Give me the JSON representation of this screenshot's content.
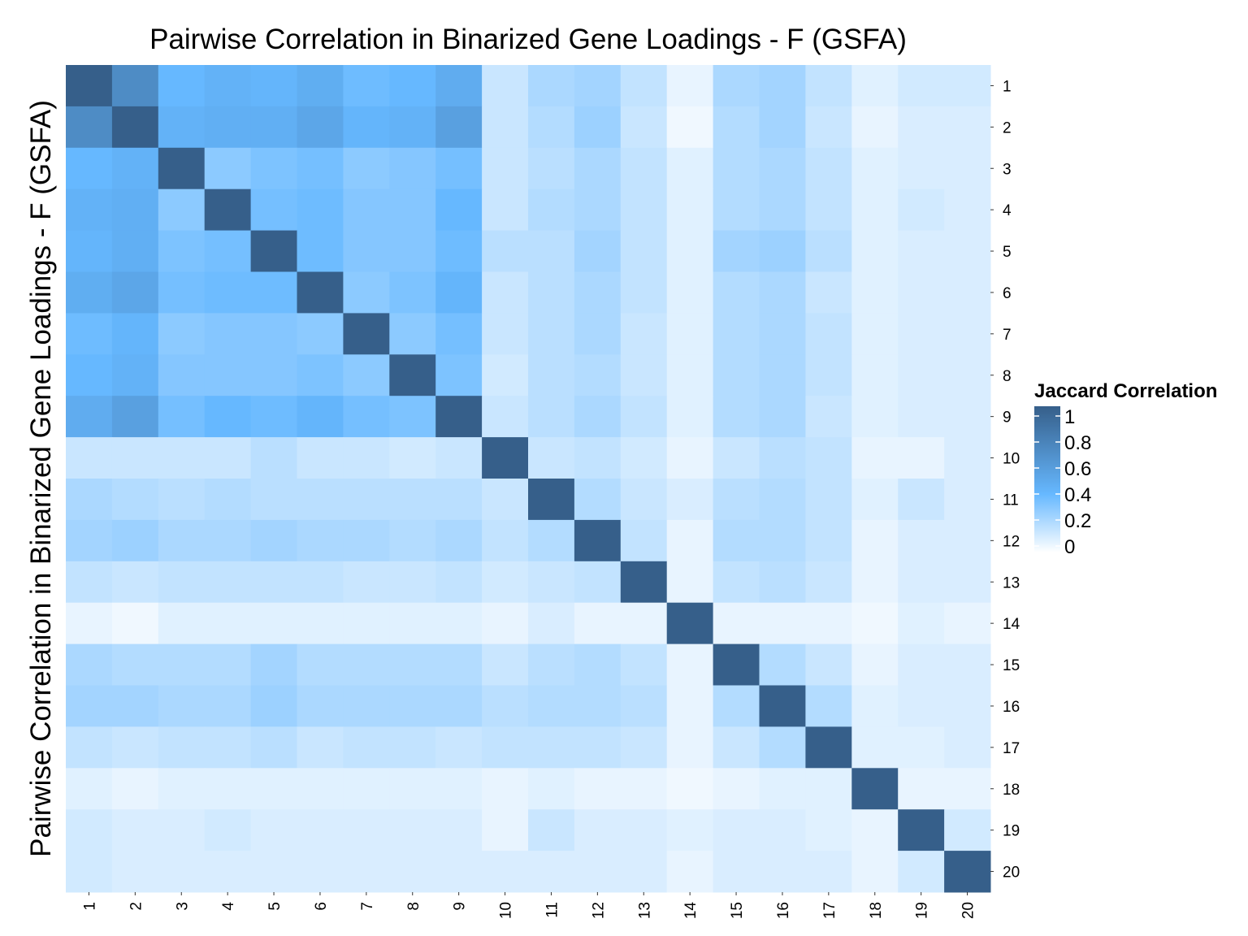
{
  "chart_data": {
    "type": "heatmap",
    "title": "Pairwise Correlation in Binarized Gene Loadings - F (GSFA)",
    "xlabel": "",
    "ylabel": "Pairwise Correlation in Binarized Gene Loadings - F (GSFA)",
    "x_categories": [
      "1",
      "2",
      "3",
      "4",
      "5",
      "6",
      "7",
      "8",
      "9",
      "10",
      "11",
      "12",
      "13",
      "14",
      "15",
      "16",
      "17",
      "18",
      "19",
      "20"
    ],
    "y_categories": [
      "1",
      "2",
      "3",
      "4",
      "5",
      "6",
      "7",
      "8",
      "9",
      "10",
      "11",
      "12",
      "13",
      "14",
      "15",
      "16",
      "17",
      "18",
      "19",
      "20"
    ],
    "values": [
      [
        1.0,
        0.7,
        0.4,
        0.44,
        0.42,
        0.47,
        0.38,
        0.4,
        0.48,
        0.14,
        0.22,
        0.24,
        0.16,
        0.06,
        0.22,
        0.24,
        0.16,
        0.08,
        0.12,
        0.12
      ],
      [
        0.7,
        1.0,
        0.44,
        0.46,
        0.46,
        0.52,
        0.42,
        0.44,
        0.56,
        0.14,
        0.2,
        0.26,
        0.14,
        0.04,
        0.2,
        0.24,
        0.14,
        0.06,
        0.1,
        0.1
      ],
      [
        0.4,
        0.44,
        1.0,
        0.3,
        0.34,
        0.36,
        0.3,
        0.32,
        0.36,
        0.14,
        0.18,
        0.22,
        0.16,
        0.08,
        0.2,
        0.22,
        0.16,
        0.08,
        0.1,
        0.1
      ],
      [
        0.44,
        0.46,
        0.3,
        1.0,
        0.36,
        0.38,
        0.32,
        0.32,
        0.4,
        0.14,
        0.2,
        0.22,
        0.16,
        0.08,
        0.2,
        0.22,
        0.16,
        0.08,
        0.12,
        0.1
      ],
      [
        0.42,
        0.46,
        0.34,
        0.36,
        1.0,
        0.38,
        0.32,
        0.32,
        0.38,
        0.18,
        0.18,
        0.24,
        0.16,
        0.08,
        0.24,
        0.26,
        0.18,
        0.08,
        0.1,
        0.1
      ],
      [
        0.47,
        0.52,
        0.36,
        0.38,
        0.38,
        1.0,
        0.3,
        0.34,
        0.42,
        0.14,
        0.18,
        0.22,
        0.16,
        0.08,
        0.2,
        0.22,
        0.14,
        0.08,
        0.1,
        0.1
      ],
      [
        0.38,
        0.42,
        0.3,
        0.32,
        0.32,
        0.3,
        1.0,
        0.3,
        0.36,
        0.14,
        0.18,
        0.22,
        0.14,
        0.08,
        0.2,
        0.22,
        0.16,
        0.08,
        0.1,
        0.1
      ],
      [
        0.4,
        0.44,
        0.32,
        0.32,
        0.32,
        0.34,
        0.3,
        1.0,
        0.34,
        0.12,
        0.18,
        0.2,
        0.14,
        0.08,
        0.2,
        0.22,
        0.16,
        0.08,
        0.1,
        0.1
      ],
      [
        0.48,
        0.56,
        0.36,
        0.4,
        0.38,
        0.42,
        0.36,
        0.34,
        1.0,
        0.14,
        0.18,
        0.22,
        0.16,
        0.08,
        0.2,
        0.22,
        0.14,
        0.08,
        0.1,
        0.1
      ],
      [
        0.14,
        0.14,
        0.14,
        0.14,
        0.18,
        0.14,
        0.14,
        0.12,
        0.14,
        1.0,
        0.14,
        0.16,
        0.12,
        0.06,
        0.14,
        0.18,
        0.16,
        0.06,
        0.06,
        0.1
      ],
      [
        0.22,
        0.2,
        0.18,
        0.2,
        0.18,
        0.18,
        0.18,
        0.18,
        0.18,
        0.14,
        1.0,
        0.2,
        0.14,
        0.1,
        0.18,
        0.2,
        0.16,
        0.08,
        0.14,
        0.1
      ],
      [
        0.24,
        0.26,
        0.22,
        0.22,
        0.24,
        0.22,
        0.22,
        0.2,
        0.22,
        0.16,
        0.2,
        1.0,
        0.16,
        0.06,
        0.2,
        0.2,
        0.16,
        0.06,
        0.1,
        0.1
      ],
      [
        0.16,
        0.14,
        0.16,
        0.16,
        0.16,
        0.16,
        0.14,
        0.14,
        0.16,
        0.12,
        0.14,
        0.16,
        1.0,
        0.06,
        0.16,
        0.18,
        0.14,
        0.06,
        0.1,
        0.1
      ],
      [
        0.06,
        0.04,
        0.08,
        0.08,
        0.08,
        0.08,
        0.08,
        0.08,
        0.08,
        0.06,
        0.1,
        0.06,
        0.06,
        1.0,
        0.06,
        0.06,
        0.06,
        0.04,
        0.08,
        0.06
      ],
      [
        0.22,
        0.2,
        0.2,
        0.2,
        0.24,
        0.2,
        0.2,
        0.2,
        0.2,
        0.14,
        0.18,
        0.2,
        0.16,
        0.06,
        1.0,
        0.2,
        0.14,
        0.06,
        0.1,
        0.1
      ],
      [
        0.24,
        0.24,
        0.22,
        0.22,
        0.26,
        0.22,
        0.22,
        0.22,
        0.22,
        0.18,
        0.2,
        0.2,
        0.18,
        0.06,
        0.2,
        1.0,
        0.2,
        0.08,
        0.1,
        0.1
      ],
      [
        0.16,
        0.14,
        0.16,
        0.16,
        0.18,
        0.14,
        0.16,
        0.16,
        0.14,
        0.16,
        0.16,
        0.16,
        0.14,
        0.06,
        0.14,
        0.2,
        1.0,
        0.08,
        0.08,
        0.1
      ],
      [
        0.08,
        0.06,
        0.08,
        0.08,
        0.08,
        0.08,
        0.08,
        0.08,
        0.08,
        0.06,
        0.08,
        0.06,
        0.06,
        0.04,
        0.06,
        0.08,
        0.08,
        1.0,
        0.06,
        0.06
      ],
      [
        0.12,
        0.1,
        0.1,
        0.12,
        0.1,
        0.1,
        0.1,
        0.1,
        0.1,
        0.06,
        0.14,
        0.1,
        0.1,
        0.08,
        0.1,
        0.1,
        0.08,
        0.06,
        1.0,
        0.12
      ],
      [
        0.12,
        0.1,
        0.1,
        0.1,
        0.1,
        0.1,
        0.1,
        0.1,
        0.1,
        0.1,
        0.1,
        0.1,
        0.1,
        0.06,
        0.1,
        0.1,
        0.1,
        0.06,
        0.12,
        1.0
      ]
    ],
    "zlim": [
      0,
      1
    ],
    "colorscale": [
      "#ffffff",
      "#66b8ff",
      "#365f8a"
    ],
    "legend": {
      "title": "Jaccard Correlation",
      "ticks": [
        "1",
        "0.8",
        "0.6",
        "0.4",
        "0.2",
        "0"
      ],
      "position": "right"
    }
  }
}
